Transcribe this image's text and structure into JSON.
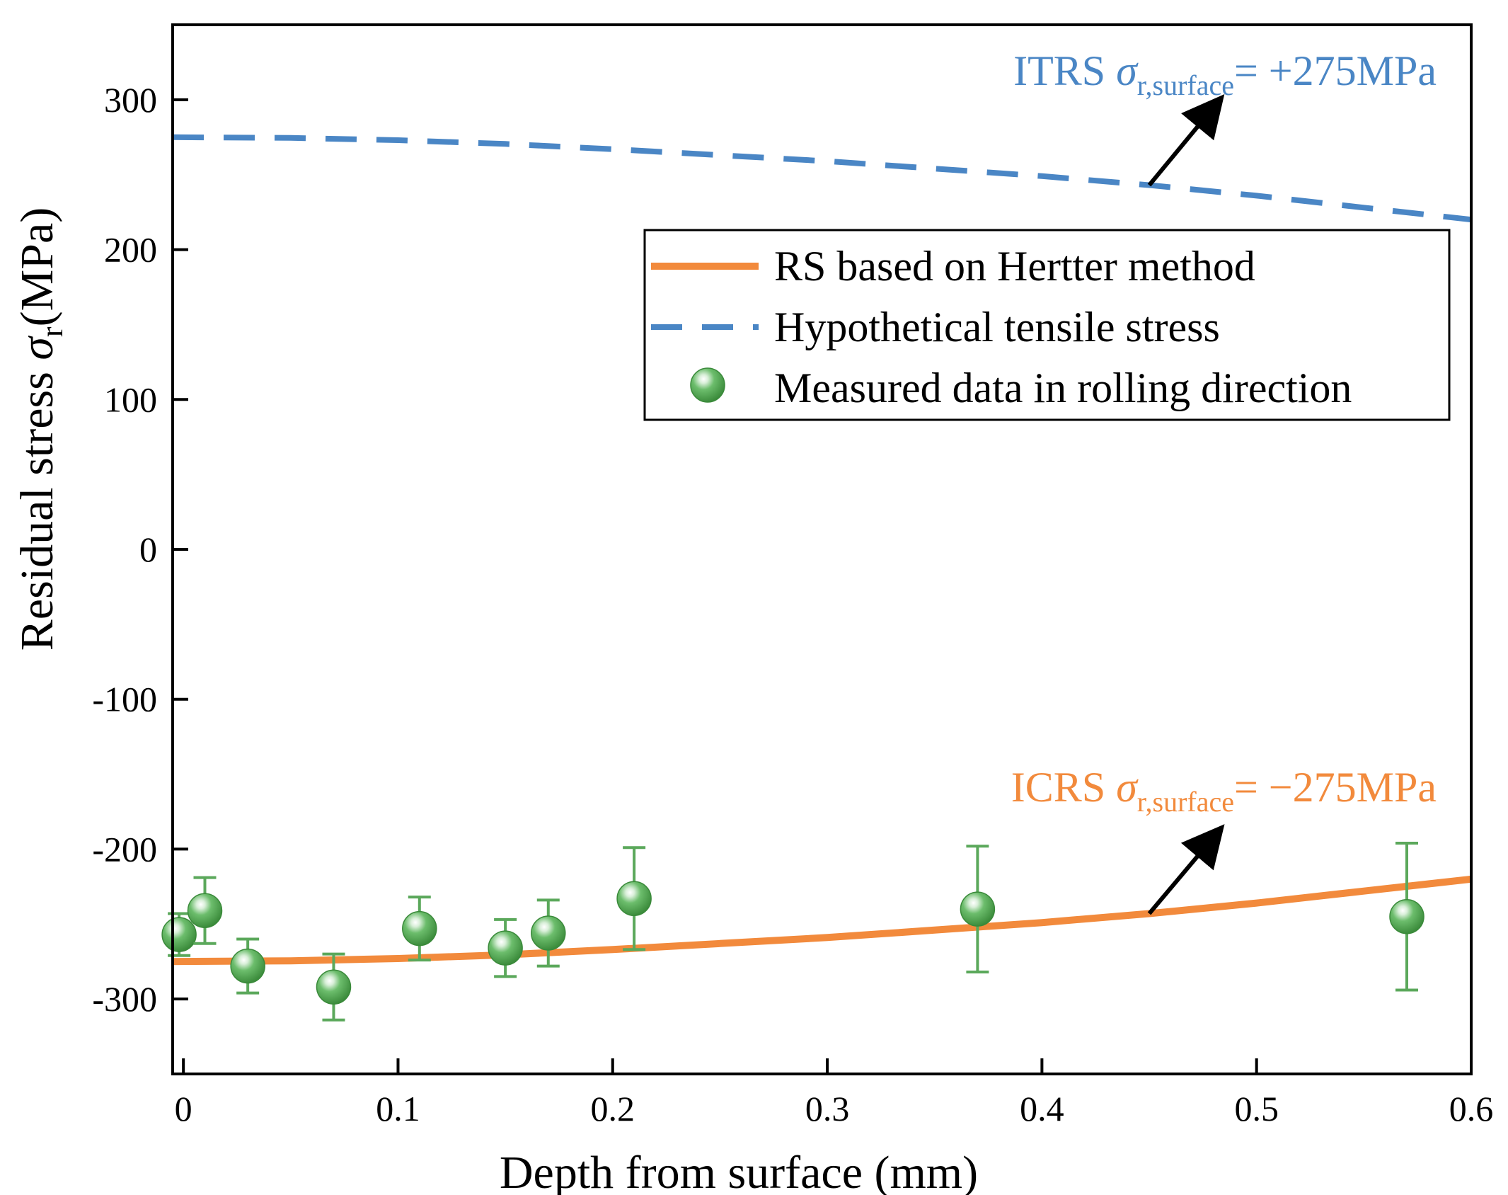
{
  "chart_data": {
    "type": "line",
    "xlabel": "Depth from surface (mm)",
    "ylabel_prefix": "Residual stress ",
    "ylabel_symbol": "σ",
    "ylabel_sub": "r",
    "ylabel_unit": "(MPa)",
    "xlim": [
      -0.005,
      0.6
    ],
    "ylim": [
      -350,
      350
    ],
    "xticks": [
      0,
      0.1,
      0.2,
      0.3,
      0.4,
      0.5,
      0.6
    ],
    "xtick_labels": [
      "0",
      "0.1",
      "0.2",
      "0.3",
      "0.4",
      "0.5",
      "0.6"
    ],
    "yticks": [
      -300,
      -200,
      -100,
      0,
      100,
      200,
      300
    ],
    "ytick_labels": [
      "-300",
      "-200",
      "-100",
      "0",
      "100",
      "200",
      "300"
    ],
    "grid": false,
    "legend_position": "top-right",
    "series": [
      {
        "name": "RS based on Hertter  method",
        "style": "solid",
        "color": "#F28A3C",
        "x": [
          -0.005,
          0.05,
          0.1,
          0.15,
          0.2,
          0.25,
          0.3,
          0.35,
          0.4,
          0.45,
          0.5,
          0.55,
          0.6
        ],
        "y": [
          -275,
          -274.5,
          -273,
          -270.5,
          -267,
          -263,
          -259,
          -254,
          -249,
          -243,
          -236,
          -228,
          -220
        ]
      },
      {
        "name": "Hypothetical tensile stress",
        "style": "dashed",
        "color": "#4A86C5",
        "x": [
          -0.005,
          0.05,
          0.1,
          0.15,
          0.2,
          0.25,
          0.3,
          0.35,
          0.4,
          0.45,
          0.5,
          0.55,
          0.6
        ],
        "y": [
          275,
          274.5,
          273,
          270.5,
          267,
          263,
          259,
          254,
          249,
          243,
          236,
          228,
          220
        ]
      },
      {
        "name": "Measured data in rolling direction",
        "style": "markers",
        "color": "#5BA85B",
        "points": [
          {
            "x": -0.002,
            "y": -257,
            "err": 14
          },
          {
            "x": 0.01,
            "y": -241,
            "err": 22
          },
          {
            "x": 0.03,
            "y": -278,
            "err": 18
          },
          {
            "x": 0.07,
            "y": -292,
            "err": 22
          },
          {
            "x": 0.11,
            "y": -253,
            "err": 21
          },
          {
            "x": 0.15,
            "y": -266,
            "err": 19
          },
          {
            "x": 0.17,
            "y": -256,
            "err": 22
          },
          {
            "x": 0.21,
            "y": -233,
            "err": 34
          },
          {
            "x": 0.37,
            "y": -240,
            "err": 42
          },
          {
            "x": 0.57,
            "y": -245,
            "err": 49
          }
        ]
      }
    ],
    "annotations": [
      {
        "id": "itrs",
        "prefix": "ITRS ",
        "symbol": "σ",
        "sub": "r,surface",
        "suffix": "= +275MPa",
        "color": "#4A86C5",
        "anchor": "upper-right",
        "arrow_from": [
          0.45,
          243
        ],
        "arrow_to": [
          0.48,
          295
        ]
      },
      {
        "id": "icrs",
        "prefix": "ICRS ",
        "symbol": "σ",
        "sub": "r,surface",
        "suffix": "= −275MPa",
        "color": "#F28A3C",
        "anchor": "right",
        "arrow_from": [
          0.45,
          -243
        ],
        "arrow_to": [
          0.48,
          -192
        ]
      }
    ]
  }
}
